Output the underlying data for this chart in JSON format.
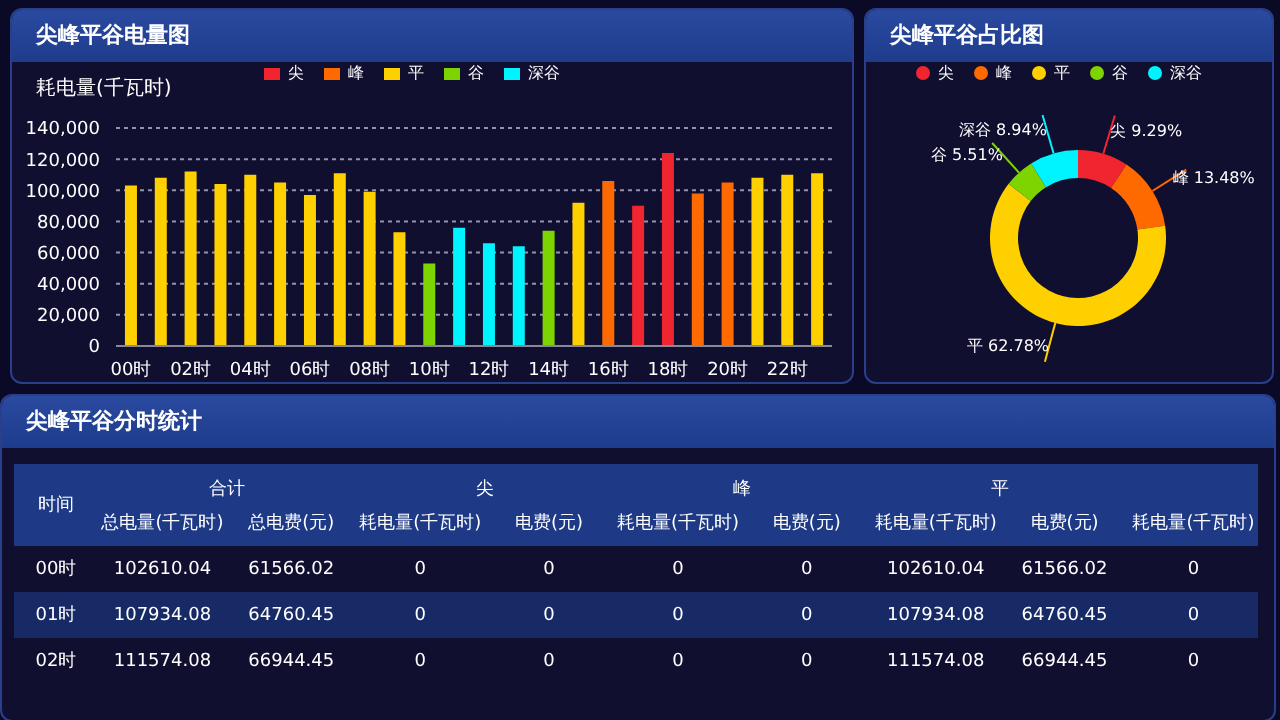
{
  "chart_data": [
    {
      "type": "bar",
      "title": "尖峰平谷电量图",
      "ylabel": "耗电量(千瓦时)",
      "categories": [
        "00时",
        null,
        "02时",
        null,
        "04时",
        null,
        "06时",
        null,
        "08时",
        null,
        "10时",
        null,
        "12时",
        null,
        "14时",
        null,
        "16时",
        null,
        "18时",
        null,
        "20时",
        null,
        "22时",
        null
      ],
      "stacked": true,
      "series": [
        {
          "name": "尖",
          "color": "#f0252f",
          "values": [
            null,
            null,
            null,
            null,
            null,
            null,
            null,
            null,
            null,
            null,
            null,
            null,
            null,
            null,
            null,
            null,
            null,
            90000,
            124000,
            null,
            null,
            null,
            null,
            null
          ]
        },
        {
          "name": "峰",
          "color": "#ff6a00",
          "values": [
            null,
            null,
            null,
            null,
            null,
            null,
            null,
            null,
            null,
            null,
            null,
            null,
            null,
            null,
            null,
            null,
            106000,
            null,
            null,
            98000,
            105000,
            null,
            null,
            null
          ]
        },
        {
          "name": "平",
          "color": "#ffd000",
          "values": [
            103000,
            108000,
            112000,
            104000,
            110000,
            105000,
            97000,
            111000,
            99000,
            73000,
            null,
            null,
            null,
            null,
            null,
            92000,
            null,
            null,
            null,
            null,
            null,
            108000,
            110000,
            111000
          ]
        },
        {
          "name": "谷",
          "color": "#7ed400",
          "values": [
            null,
            null,
            null,
            null,
            null,
            null,
            null,
            null,
            null,
            null,
            53000,
            null,
            null,
            null,
            74000,
            null,
            null,
            null,
            null,
            null,
            null,
            null,
            null,
            null
          ]
        },
        {
          "name": "深谷",
          "color": "#00f4ff",
          "values": [
            null,
            null,
            null,
            null,
            null,
            null,
            null,
            null,
            null,
            null,
            null,
            76000,
            66000,
            64000,
            null,
            null,
            null,
            null,
            null,
            null,
            null,
            null,
            null,
            null
          ]
        }
      ],
      "ylim": [
        0,
        140000
      ],
      "yticks": [
        {
          "value": 0,
          "label": "0"
        },
        {
          "value": 20000,
          "label": "20,000"
        },
        {
          "value": 40000,
          "label": "40,000"
        },
        {
          "value": 60000,
          "label": "60,000"
        },
        {
          "value": 80000,
          "label": "80,000"
        },
        {
          "value": 100000,
          "label": "100,000"
        },
        {
          "value": 120000,
          "label": "120,000"
        },
        {
          "value": 140000,
          "label": "140,000"
        }
      ],
      "grid": "y",
      "legend": "top"
    },
    {
      "type": "donut",
      "title": "尖峰平谷占比图",
      "categories": [
        "尖",
        "峰",
        "平",
        "谷",
        "深谷"
      ],
      "values": [
        9.29,
        13.48,
        62.78,
        5.51,
        8.94
      ],
      "value_labels": [
        "9.29%",
        "13.48%",
        "62.78%",
        "5.51%",
        "8.94%"
      ],
      "colors": [
        "#f0252f",
        "#ff6a00",
        "#ffd000",
        "#7ed400",
        "#00f4ff"
      ],
      "legend": "top"
    },
    {
      "type": "other",
      "title": "尖峰平谷分时统计",
      "annotations": [
        "时间",
        "合计",
        "尖",
        "峰",
        "平"
      ],
      "categories": [
        "总电量(千瓦时)",
        "总电费(元)",
        "耗电量(千瓦时)",
        "电费(元)",
        "耗电量(千瓦时)",
        "电费(元)",
        "耗电量(千瓦时)",
        "电费(元)",
        "耗电量(千瓦时)"
      ],
      "y_categories": [
        "00时",
        "01时",
        "02时"
      ],
      "cell_labels": [
        [
          "102610.04",
          "61566.02",
          "0",
          "0",
          "0",
          "0",
          "102610.04",
          "61566.02",
          "0"
        ],
        [
          "107934.08",
          "64760.45",
          "0",
          "0",
          "0",
          "0",
          "107934.08",
          "64760.45",
          "0"
        ],
        [
          "111574.08",
          "66944.45",
          "0",
          "0",
          "0",
          "0",
          "111574.08",
          "66944.45",
          "0"
        ]
      ]
    }
  ]
}
